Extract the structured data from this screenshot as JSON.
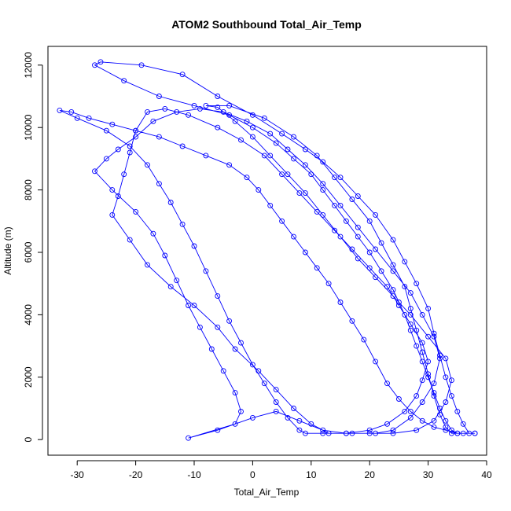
{
  "chart_data": {
    "type": "line",
    "title": "ATOM2 Southbound Total_Air_Temp",
    "xlabel": "Total_Air_Temp",
    "ylabel": "Altitude (m)",
    "xlim": [
      -35,
      40
    ],
    "ylim": [
      -500,
      12600
    ],
    "x_ticks": [
      -30,
      -20,
      -10,
      0,
      10,
      20,
      30,
      40
    ],
    "y_ticks": [
      0,
      2000,
      4000,
      6000,
      8000,
      10000,
      12000
    ],
    "grid": false,
    "legend": "none",
    "color": "#0000ff",
    "series": [
      {
        "points": [
          [
            38,
            200
          ],
          [
            35,
            200
          ],
          [
            34,
            300
          ],
          [
            33,
            600
          ],
          [
            32,
            1000
          ],
          [
            31,
            1500
          ],
          [
            30,
            2000
          ],
          [
            29,
            2500
          ],
          [
            28,
            3000
          ],
          [
            27,
            3500
          ],
          [
            26,
            4000
          ],
          [
            25,
            4400
          ],
          [
            24,
            4800
          ],
          [
            22,
            5400
          ],
          [
            20,
            6000
          ],
          [
            18,
            6500
          ],
          [
            16,
            7000
          ],
          [
            14,
            7500
          ],
          [
            12,
            8000
          ],
          [
            10,
            8500
          ],
          [
            7,
            9000
          ],
          [
            4,
            9500
          ],
          [
            0,
            10000
          ],
          [
            -4,
            10400
          ],
          [
            -10,
            10700
          ],
          [
            -16,
            11000
          ],
          [
            -22,
            11500
          ],
          [
            -27,
            12000
          ],
          [
            -26,
            12100
          ],
          [
            -19,
            12000
          ],
          [
            -12,
            11700
          ],
          [
            -6,
            11000
          ],
          [
            0,
            10400
          ],
          [
            5,
            9800
          ],
          [
            9,
            9300
          ],
          [
            12,
            8900
          ],
          [
            15,
            8400
          ],
          [
            18,
            7800
          ],
          [
            21,
            7200
          ],
          [
            24,
            6400
          ],
          [
            26,
            5700
          ],
          [
            28,
            5000
          ],
          [
            30,
            4200
          ],
          [
            31,
            3400
          ],
          [
            32,
            2700
          ],
          [
            33,
            2000
          ],
          [
            34,
            1400
          ],
          [
            35,
            900
          ],
          [
            36,
            500
          ],
          [
            37,
            200
          ],
          [
            35,
            200
          ],
          [
            33,
            300
          ],
          [
            31,
            400
          ],
          [
            29,
            600
          ],
          [
            27,
            900
          ],
          [
            25,
            1300
          ],
          [
            23,
            1800
          ],
          [
            21,
            2500
          ],
          [
            19,
            3200
          ],
          [
            17,
            3800
          ],
          [
            15,
            4400
          ],
          [
            13,
            5000
          ],
          [
            11,
            5500
          ],
          [
            9,
            6000
          ],
          [
            7,
            6500
          ],
          [
            5,
            7000
          ],
          [
            3,
            7500
          ],
          [
            1,
            8000
          ],
          [
            -1,
            8400
          ],
          [
            -4,
            8800
          ],
          [
            -8,
            9100
          ],
          [
            -12,
            9400
          ],
          [
            -16,
            9700
          ],
          [
            -20,
            9900
          ],
          [
            -24,
            10100
          ],
          [
            -28,
            10300
          ],
          [
            -31,
            10500
          ],
          [
            -33,
            10550
          ],
          [
            -30,
            10300
          ],
          [
            -25,
            9900
          ],
          [
            -21,
            9400
          ],
          [
            -18,
            8800
          ],
          [
            -16,
            8200
          ],
          [
            -14,
            7600
          ],
          [
            -12,
            6900
          ],
          [
            -10,
            6200
          ],
          [
            -8,
            5400
          ],
          [
            -6,
            4600
          ],
          [
            -4,
            3800
          ],
          [
            -2,
            3100
          ],
          [
            0,
            2400
          ],
          [
            2,
            1800
          ],
          [
            4,
            1200
          ],
          [
            6,
            700
          ],
          [
            8,
            300
          ],
          [
            9,
            200
          ],
          [
            12,
            200
          ],
          [
            16,
            200
          ],
          [
            20,
            300
          ],
          [
            23,
            500
          ],
          [
            26,
            900
          ],
          [
            28,
            1400
          ],
          [
            29,
            1900
          ],
          [
            30,
            2500
          ],
          [
            29,
            3100
          ],
          [
            27,
            3700
          ],
          [
            25,
            4300
          ],
          [
            23,
            4900
          ],
          [
            20,
            5500
          ],
          [
            17,
            6100
          ],
          [
            14,
            6700
          ],
          [
            11,
            7300
          ],
          [
            8,
            7900
          ],
          [
            5,
            8500
          ],
          [
            2,
            9100
          ],
          [
            -2,
            9600
          ],
          [
            -6,
            10000
          ],
          [
            -11,
            10400
          ],
          [
            -15,
            10600
          ],
          [
            -18,
            10500
          ],
          [
            -20,
            9900
          ],
          [
            -21,
            9200
          ],
          [
            -22,
            8500
          ],
          [
            -23,
            7800
          ],
          [
            -24,
            7200
          ],
          [
            -21,
            6400
          ],
          [
            -18,
            5600
          ],
          [
            -14,
            4900
          ],
          [
            -10,
            4300
          ],
          [
            -6,
            3600
          ],
          [
            -3,
            2900
          ],
          [
            1,
            2200
          ],
          [
            4,
            1600
          ],
          [
            7,
            1000
          ],
          [
            10,
            500
          ],
          [
            13,
            200
          ],
          [
            17,
            200
          ],
          [
            21,
            200
          ],
          [
            24,
            300
          ],
          [
            27,
            700
          ],
          [
            29,
            1200
          ],
          [
            31,
            1800
          ],
          [
            32,
            2600
          ],
          [
            31,
            3300
          ],
          [
            29,
            4000
          ],
          [
            27,
            4700
          ],
          [
            24,
            5400
          ],
          [
            21,
            6100
          ],
          [
            18,
            6800
          ],
          [
            15,
            7500
          ],
          [
            12,
            8200
          ],
          [
            9,
            8800
          ],
          [
            6,
            9300
          ],
          [
            3,
            9800
          ],
          [
            -1,
            10200
          ],
          [
            -5,
            10500
          ],
          [
            -9,
            10600
          ],
          [
            -13,
            10500
          ],
          [
            -17,
            10200
          ],
          [
            -20,
            9700
          ],
          [
            -23,
            9300
          ],
          [
            -25,
            9000
          ],
          [
            -27,
            8600
          ],
          [
            -24,
            8000
          ],
          [
            -20,
            7300
          ],
          [
            -17,
            6600
          ],
          [
            -15,
            5900
          ],
          [
            -13,
            5100
          ],
          [
            -11,
            4300
          ],
          [
            -9,
            3600
          ],
          [
            -7,
            2900
          ],
          [
            -5,
            2200
          ],
          [
            -3,
            1500
          ],
          [
            -2,
            900
          ],
          [
            -3,
            500
          ],
          [
            -11,
            50
          ],
          [
            -6,
            300
          ],
          [
            0,
            700
          ],
          [
            4,
            900
          ],
          [
            8,
            600
          ],
          [
            12,
            300
          ],
          [
            16,
            200
          ],
          [
            20,
            200
          ],
          [
            24,
            200
          ],
          [
            28,
            300
          ],
          [
            31,
            600
          ],
          [
            33,
            1200
          ],
          [
            34,
            1900
          ],
          [
            33,
            2600
          ],
          [
            30,
            3300
          ],
          [
            27,
            4000
          ],
          [
            24,
            4600
          ],
          [
            21,
            5200
          ],
          [
            18,
            5800
          ],
          [
            15,
            6500
          ],
          [
            12,
            7200
          ],
          [
            9,
            7900
          ],
          [
            6,
            8500
          ],
          [
            3,
            9100
          ],
          [
            0,
            9700
          ],
          [
            -3,
            10200
          ],
          [
            -6,
            10650
          ],
          [
            -8,
            10700
          ],
          [
            -4,
            10700
          ],
          [
            2,
            10300
          ],
          [
            7,
            9700
          ],
          [
            11,
            9100
          ],
          [
            14,
            8400
          ],
          [
            17,
            7700
          ],
          [
            20,
            7000
          ],
          [
            22,
            6300
          ],
          [
            24,
            5600
          ],
          [
            26,
            4900
          ],
          [
            27,
            4200
          ],
          [
            28,
            3500
          ],
          [
            29,
            2800
          ],
          [
            30,
            2100
          ],
          [
            31,
            1400
          ],
          [
            32,
            800
          ],
          [
            33,
            400
          ],
          [
            34,
            200
          ],
          [
            36,
            200
          ],
          [
            38,
            200
          ]
        ]
      }
    ]
  }
}
